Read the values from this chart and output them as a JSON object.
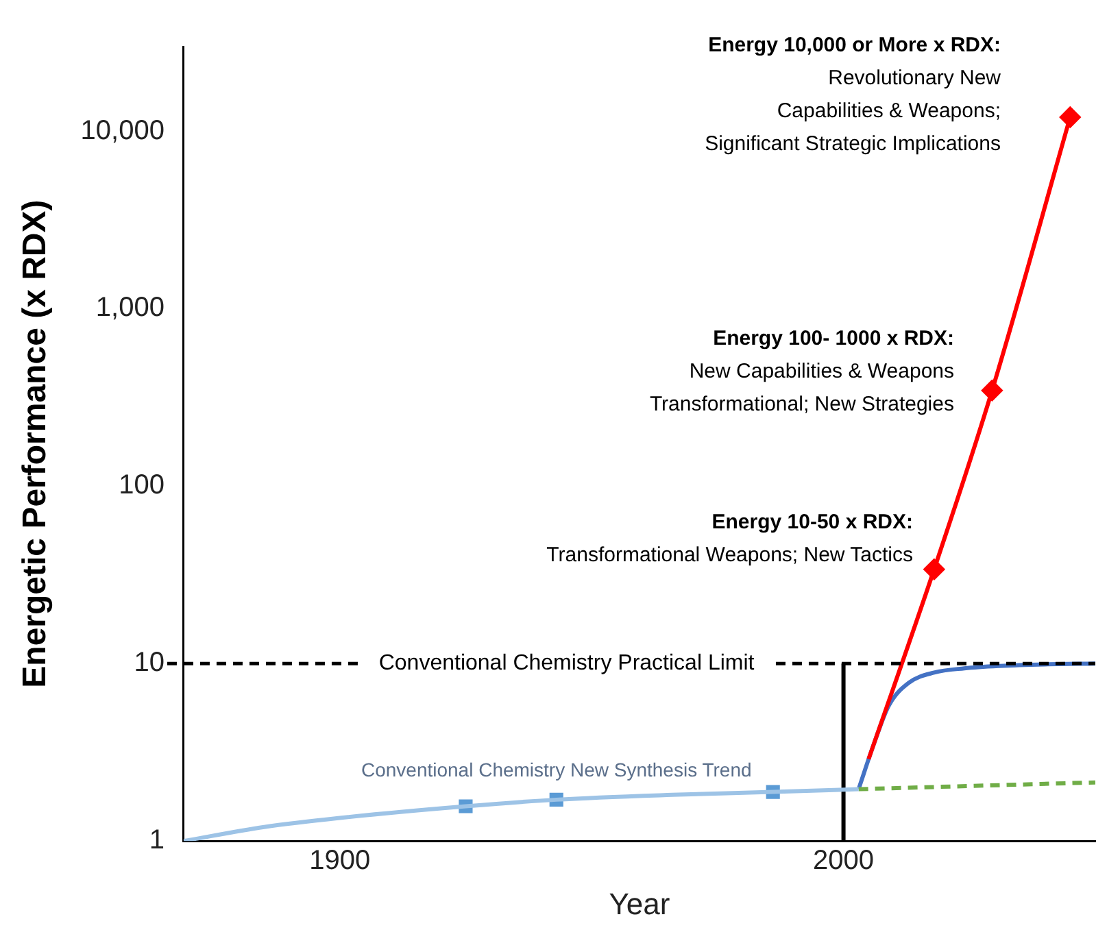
{
  "chart_data": {
    "type": "line",
    "xlabel": "Year",
    "ylabel": "Energetic Performance (x RDX)",
    "log": "y",
    "grid": false,
    "legend": false,
    "xlim": [
      1869,
      2050
    ],
    "xticks": [
      1900,
      2000
    ],
    "ylim": [
      1,
      30000
    ],
    "yticks": [
      1,
      10,
      100,
      {
        "value": 1000,
        "label": "1,000"
      },
      {
        "value": 10000,
        "label": "10,000"
      }
    ],
    "series": [
      {
        "name": "Conventional Chemistry New Synthesis Trend",
        "type": "line",
        "color": "#9dc3e6",
        "marker": "none",
        "x": [
          1869,
          1885,
          1900,
          1925,
          1943,
          1966,
          1986,
          2003
        ],
        "values": [
          1,
          1.2,
          1.35,
          1.57,
          1.71,
          1.82,
          1.89,
          1.96
        ]
      },
      {
        "type": "scatter",
        "color": "#5b9bd5",
        "marker": "square",
        "x": [
          1925,
          1943,
          1986
        ],
        "values": [
          1.57,
          1.71,
          1.89
        ]
      },
      {
        "type": "line",
        "color": "#000000",
        "marker": "none",
        "x": [
          2000,
          2000
        ],
        "values": [
          1,
          10
        ]
      },
      {
        "type": "line",
        "color": "#70ad47",
        "marker": "none",
        "line_style": "dashed",
        "x": [
          2003,
          2050
        ],
        "values": [
          1.96,
          2.14
        ]
      },
      {
        "type": "line",
        "color": "#ff0000",
        "marker": "none",
        "x": [
          2005,
          2018,
          2029.5,
          2045
        ],
        "values": [
          2.9,
          34,
          346,
          12000
        ]
      },
      {
        "type": "line",
        "color": "#4472c4",
        "marker": "none",
        "x": [
          2003,
          2006,
          2009,
          2013,
          2018,
          2024,
          2031,
          2040,
          2050
        ],
        "values": [
          1.96,
          3.5,
          5.8,
          7.8,
          8.9,
          9.4,
          9.7,
          9.9,
          10
        ]
      },
      {
        "type": "scatter",
        "color": "#ff0000",
        "marker": "diamond",
        "x": [
          2018,
          2029.5,
          2045
        ],
        "values": [
          34,
          346,
          12000
        ]
      }
    ],
    "ref_lines": [
      {
        "axis": "y",
        "value": 10,
        "label": "Conventional Chemistry Practical Limit",
        "color": "#000000",
        "line_style": "dashed"
      }
    ],
    "annotations": [
      "Energy 10,000 or More x RDX:\nRevolutionary New\nCapabilities & Weapons;\nSignificant Strategic Implications",
      "Energy 100- 1000 x RDX:\nNew Capabilities & Weapons\nTransformational; New Strategies",
      "Energy 10-50 x RDX:\nTransformational Weapons; New Tactics"
    ]
  }
}
